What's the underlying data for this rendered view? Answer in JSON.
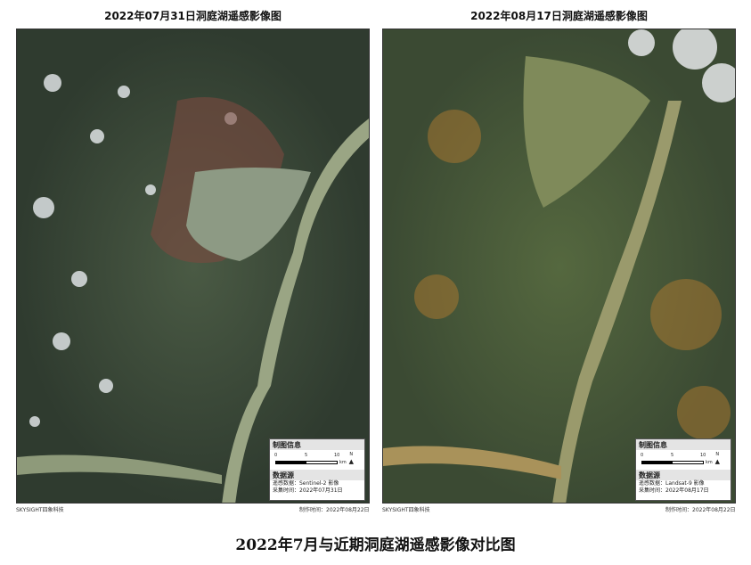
{
  "caption": "2022年7月与近期洞庭湖遥感影像对比图",
  "panels": [
    {
      "title": "2022年07月31日洞庭湖遥感影像图",
      "info_title": "制图信息",
      "scale": [
        "0",
        "5",
        "10",
        "km"
      ],
      "north": "N",
      "source_title": "数据源",
      "source_data": "遥感数据：Sentinel-2 影像",
      "acquired": "采集时间：2022年07月31日",
      "made": "制作时间：2022年08月22日",
      "credit": "SKYSIGHT四象科技"
    },
    {
      "title": "2022年08月17日洞庭湖遥感影像图",
      "info_title": "制图信息",
      "scale": [
        "0",
        "5",
        "10",
        "km"
      ],
      "north": "N",
      "source_title": "数据源",
      "source_data": "遥感数据：Landsat-9 影像",
      "acquired": "采集时间：2022年08月17日",
      "made": "制作时间：2022年08月22日",
      "credit": "SKYSIGHT四象科技"
    }
  ],
  "colors": {
    "water": "#8a9a78",
    "land_july": "#3d4a3a",
    "land_aug": "#4d5e3e"
  }
}
